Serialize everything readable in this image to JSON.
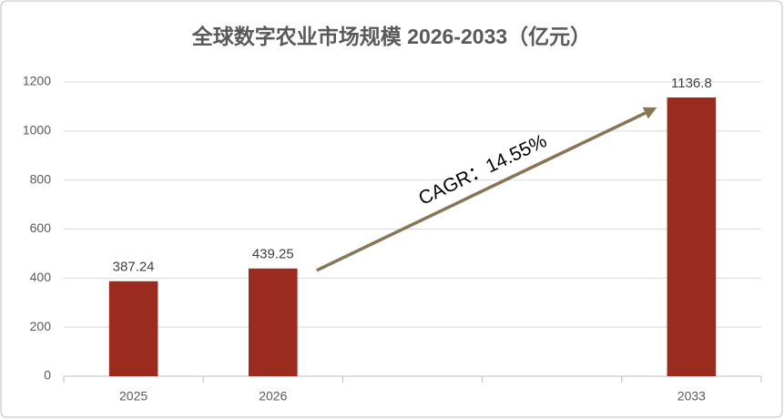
{
  "chart_data": {
    "type": "bar",
    "title": "全球数字农业市场规模 2026-2033（亿元）",
    "categories": [
      "2025",
      "2026",
      null,
      null,
      "2033"
    ],
    "values": [
      387.24,
      439.25,
      null,
      null,
      1136.8
    ],
    "color": "#9b2b1f",
    "ylim": [
      0,
      1200
    ],
    "yticks": [
      0,
      200,
      400,
      600,
      800,
      1000,
      1200
    ],
    "grid": true,
    "annotation": "CAGR：14.55%",
    "annotation_color": "#857656"
  }
}
